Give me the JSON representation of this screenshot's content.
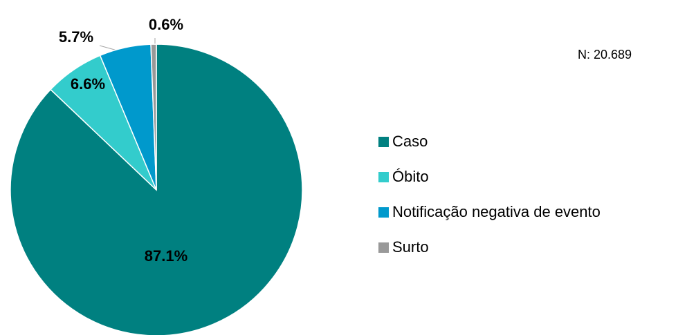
{
  "chart_data": {
    "type": "pie",
    "annotation": "N: 20.689",
    "categories": [
      "Caso",
      "Óbito",
      "Notificação negativa de evento",
      "Surto"
    ],
    "values": [
      87.1,
      6.6,
      5.7,
      0.6
    ],
    "value_labels": [
      "87.1%",
      "6.6%",
      "5.7%",
      "0.6%"
    ],
    "colors": [
      "#008080",
      "#33cccc",
      "#0099cc",
      "#999999"
    ],
    "legend": "right"
  }
}
